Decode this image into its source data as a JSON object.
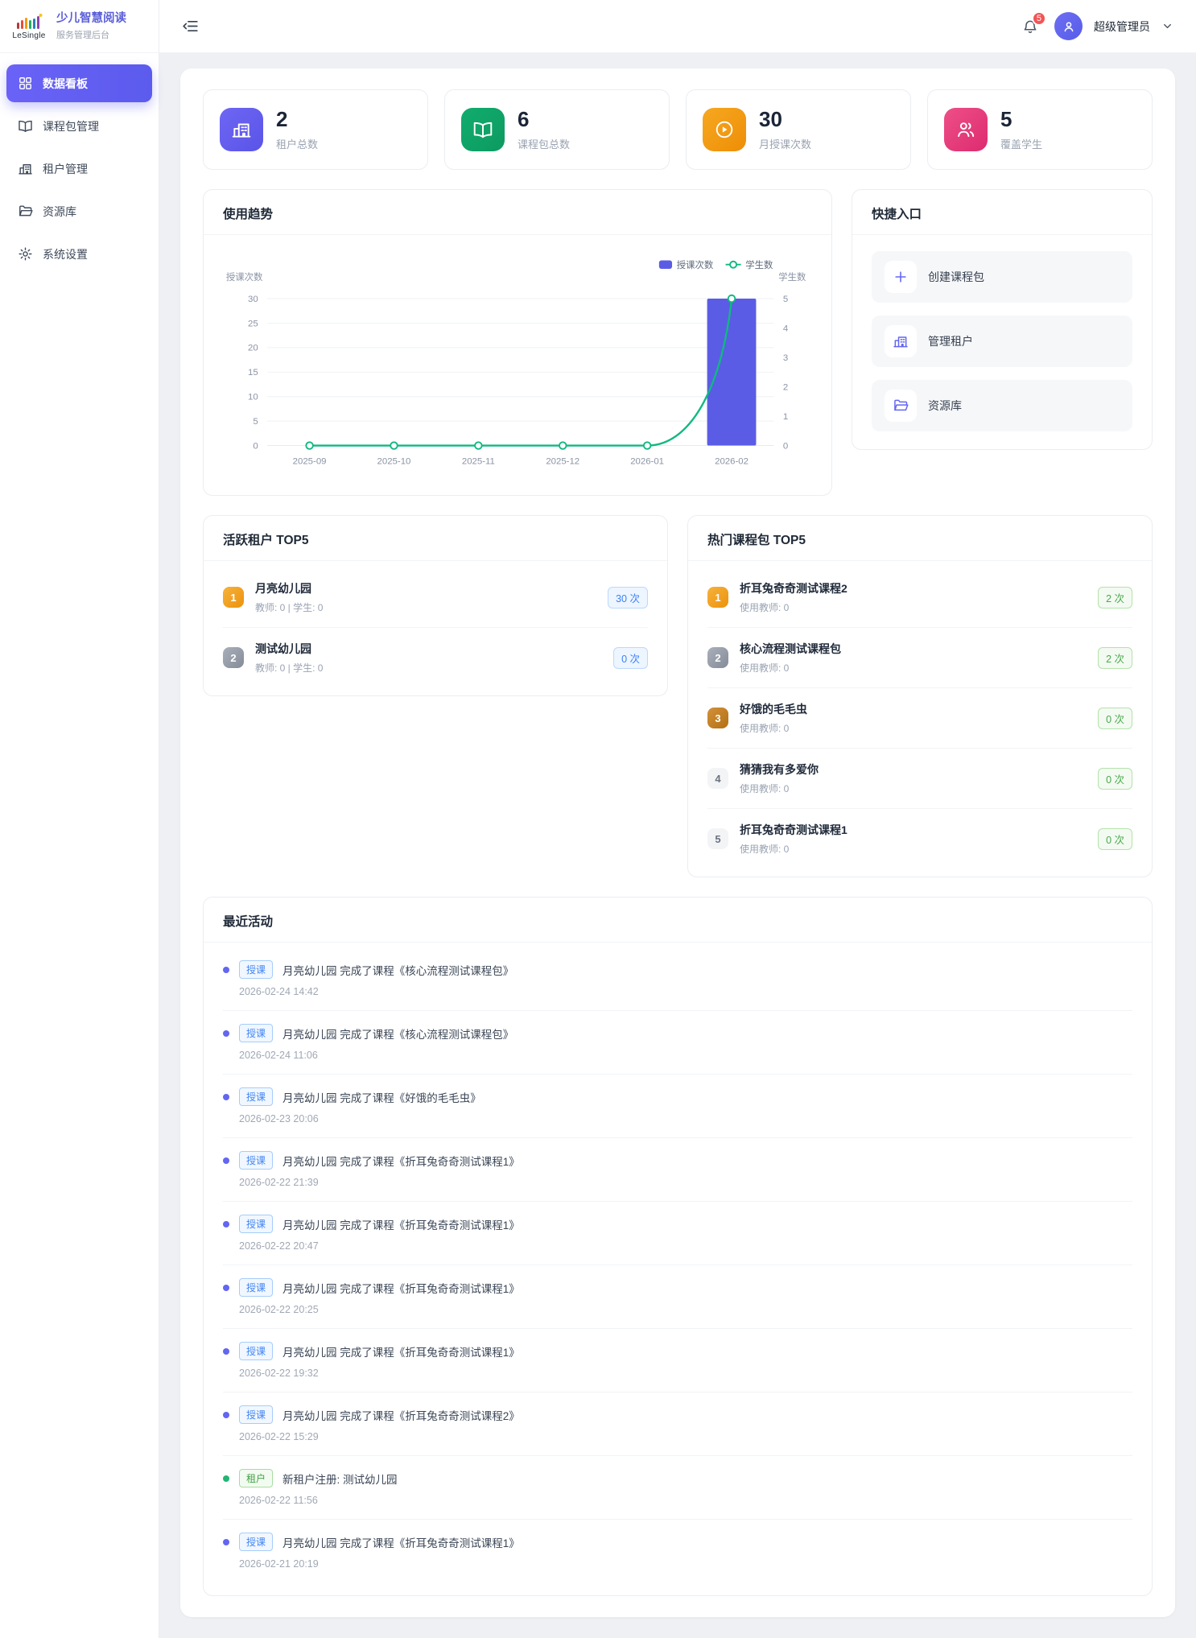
{
  "sidebar": {
    "brand": "LeSingle",
    "title": "少儿智慧阅读",
    "subtitle": "服务管理后台",
    "items": [
      {
        "label": "数据看板",
        "icon": "dashboard",
        "active": true
      },
      {
        "label": "课程包管理",
        "icon": "book",
        "active": false
      },
      {
        "label": "租户管理",
        "icon": "building",
        "active": false
      },
      {
        "label": "资源库",
        "icon": "folder",
        "active": false
      },
      {
        "label": "系统设置",
        "icon": "gear",
        "active": false
      }
    ]
  },
  "header": {
    "notification_count": "5",
    "user_name": "超级管理员"
  },
  "stats": [
    {
      "value": "2",
      "label": "租户总数",
      "icon": "building",
      "color": "#6e66f3",
      "color2": "#5a54e8"
    },
    {
      "value": "6",
      "label": "课程包总数",
      "icon": "book",
      "color": "#12ad6e",
      "color2": "#0c9a60"
    },
    {
      "value": "30",
      "label": "月授课次数",
      "icon": "play",
      "color": "#f6a821",
      "color2": "#ee8e06"
    },
    {
      "value": "5",
      "label": "覆盖学生",
      "icon": "users",
      "color": "#ee4f87",
      "color2": "#dd2b70"
    }
  ],
  "chart_card": {
    "title": "使用趋势"
  },
  "chart_data": {
    "type": "bar+line",
    "categories": [
      "2025-09",
      "2025-10",
      "2025-11",
      "2025-12",
      "2026-01",
      "2026-02"
    ],
    "series": [
      {
        "name": "授课次数",
        "type": "bar",
        "axis": "left",
        "color": "#5b5ce6",
        "values": [
          0,
          0,
          0,
          0,
          0,
          30
        ]
      },
      {
        "name": "学生数",
        "type": "line",
        "axis": "right",
        "color": "#10b981",
        "values": [
          0,
          0,
          0,
          0,
          0,
          5
        ]
      }
    ],
    "left_axis": {
      "label": "授课次数",
      "min": 0,
      "max": 30,
      "step": 5
    },
    "right_axis": {
      "label": "学生数",
      "min": 0,
      "max": 5,
      "step": 1
    },
    "grid": true,
    "legend_position": "top-right"
  },
  "quick_entry": {
    "title": "快捷入口",
    "items": [
      {
        "label": "创建课程包",
        "icon": "plus"
      },
      {
        "label": "管理租户",
        "icon": "building"
      },
      {
        "label": "资源库",
        "icon": "folder"
      }
    ]
  },
  "active_tenants": {
    "title": "活跃租户 TOP5",
    "items": [
      {
        "rank": "1",
        "name": "月亮幼儿园",
        "meta": "教师: 0 | 学生: 0",
        "count": "30 次"
      },
      {
        "rank": "2",
        "name": "测试幼儿园",
        "meta": "教师: 0 | 学生: 0",
        "count": "0 次"
      }
    ]
  },
  "hot_packages": {
    "title": "热门课程包 TOP5",
    "items": [
      {
        "rank": "1",
        "name": "折耳兔奇奇测试课程2",
        "meta": "使用教师: 0",
        "count": "2 次"
      },
      {
        "rank": "2",
        "name": "核心流程测试课程包",
        "meta": "使用教师: 0",
        "count": "2 次"
      },
      {
        "rank": "3",
        "name": "好饿的毛毛虫",
        "meta": "使用教师: 0",
        "count": "0 次"
      },
      {
        "rank": "4",
        "name": "猜猜我有多爱你",
        "meta": "使用教师: 0",
        "count": "0 次"
      },
      {
        "rank": "5",
        "name": "折耳兔奇奇测试课程1",
        "meta": "使用教师: 0",
        "count": "0 次"
      }
    ]
  },
  "recent_activity": {
    "title": "最近活动",
    "items": [
      {
        "type": "teach",
        "badge": "授课",
        "text": "月亮幼儿园 完成了课程《核心流程测试课程包》",
        "time": "2026-02-24 14:42"
      },
      {
        "type": "teach",
        "badge": "授课",
        "text": "月亮幼儿园 完成了课程《核心流程测试课程包》",
        "time": "2026-02-24 11:06"
      },
      {
        "type": "teach",
        "badge": "授课",
        "text": "月亮幼儿园 完成了课程《好饿的毛毛虫》",
        "time": "2026-02-23 20:06"
      },
      {
        "type": "teach",
        "badge": "授课",
        "text": "月亮幼儿园 完成了课程《折耳兔奇奇测试课程1》",
        "time": "2026-02-22 21:39"
      },
      {
        "type": "teach",
        "badge": "授课",
        "text": "月亮幼儿园 完成了课程《折耳兔奇奇测试课程1》",
        "time": "2026-02-22 20:47"
      },
      {
        "type": "teach",
        "badge": "授课",
        "text": "月亮幼儿园 完成了课程《折耳兔奇奇测试课程1》",
        "time": "2026-02-22 20:25"
      },
      {
        "type": "teach",
        "badge": "授课",
        "text": "月亮幼儿园 完成了课程《折耳兔奇奇测试课程1》",
        "time": "2026-02-22 19:32"
      },
      {
        "type": "teach",
        "badge": "授课",
        "text": "月亮幼儿园 完成了课程《折耳兔奇奇测试课程2》",
        "time": "2026-02-22 15:29"
      },
      {
        "type": "tenant",
        "badge": "租户",
        "text": "新租户注册: 测试幼儿园",
        "time": "2026-02-22 11:56"
      },
      {
        "type": "teach",
        "badge": "授课",
        "text": "月亮幼儿园 完成了课程《折耳兔奇奇测试课程1》",
        "time": "2026-02-21 20:19"
      }
    ]
  }
}
